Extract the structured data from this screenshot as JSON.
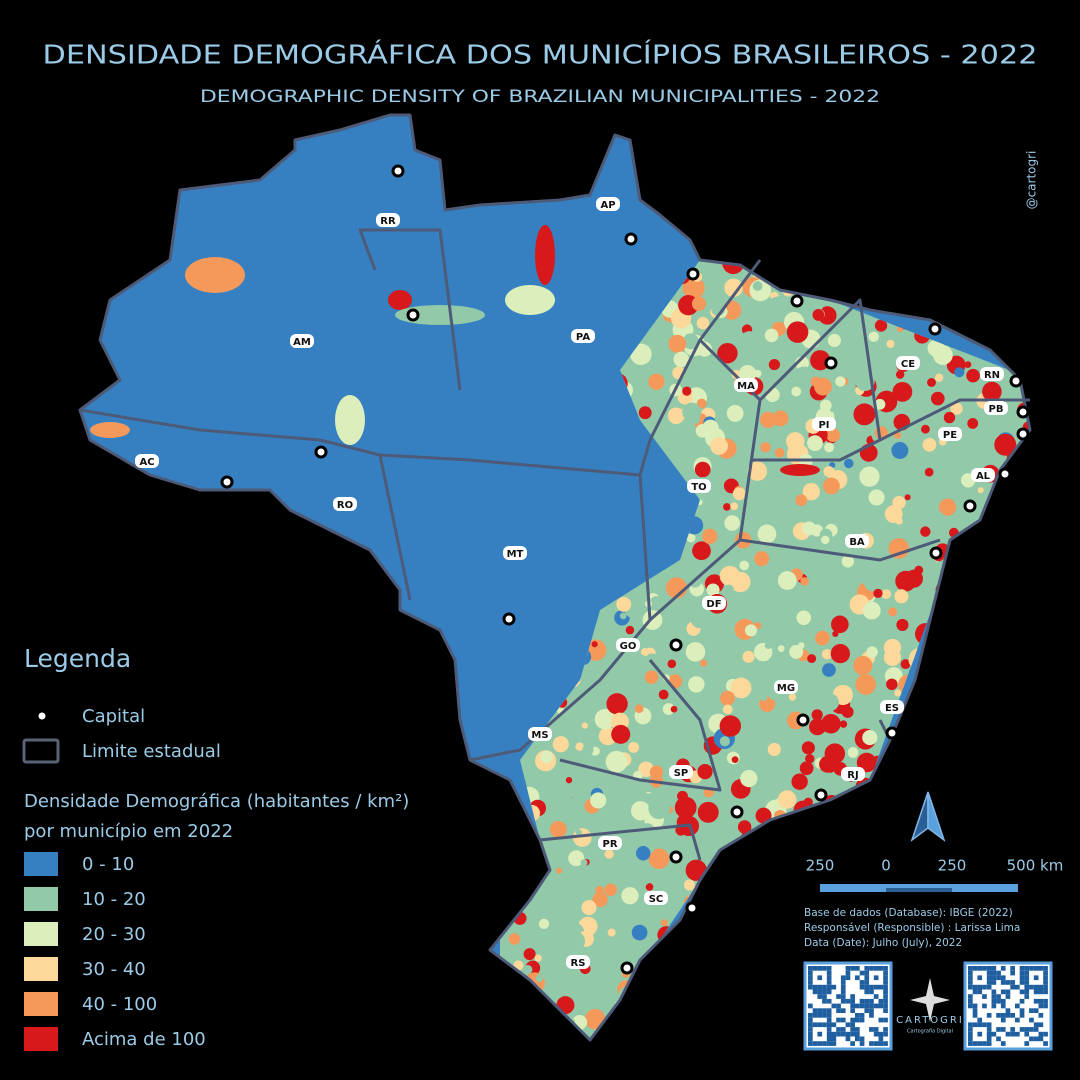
{
  "header": {
    "title": "DENSIDADE DEMOGRÁFICA DOS MUNICÍPIOS BRASILEIROS - 2022",
    "subtitle": "DEMOGRAPHIC DENSITY OF BRAZILIAN MUNICIPALITIES - 2022"
  },
  "watermark": "@cartogri",
  "map": {
    "land_color": "#3680c2",
    "border_color": "#4d5a78",
    "state_labels": [
      "RR",
      "AP",
      "AM",
      "PA",
      "MA",
      "CE",
      "RN",
      "PB",
      "PE",
      "AL",
      "PI",
      "TO",
      "BA",
      "AC",
      "RO",
      "MT",
      "DF",
      "GO",
      "MG",
      "ES",
      "MS",
      "SP",
      "RJ",
      "PR",
      "SC",
      "RS"
    ]
  },
  "legend": {
    "title": "Legenda",
    "capital": "Capital",
    "boundary": "Limite estadual",
    "density_title": [
      "Densidade Demográfica (habitantes / km²)",
      "por município em 2022"
    ],
    "classes": [
      {
        "label": "0 - 10",
        "color": "#3680c2"
      },
      {
        "label": "10 - 20",
        "color": "#92c9a8"
      },
      {
        "label": "20 - 30",
        "color": "#dbeebb"
      },
      {
        "label": "30 - 40",
        "color": "#fcd99a"
      },
      {
        "label": "40 - 100",
        "color": "#f5995a"
      },
      {
        "label": "Acima de 100",
        "color": "#d7191c"
      }
    ]
  },
  "scale_bar": {
    "labels": [
      "250",
      "0",
      "250",
      "500 km"
    ]
  },
  "credits": [
    "Base de dados (Database): IBGE (2022)",
    "Responsável (Responsible) : Larissa Lima",
    "Data (Date): Julho (July), 2022"
  ],
  "logo": {
    "name": "CARTOGRI",
    "tagline": "Cartografia Digital"
  }
}
